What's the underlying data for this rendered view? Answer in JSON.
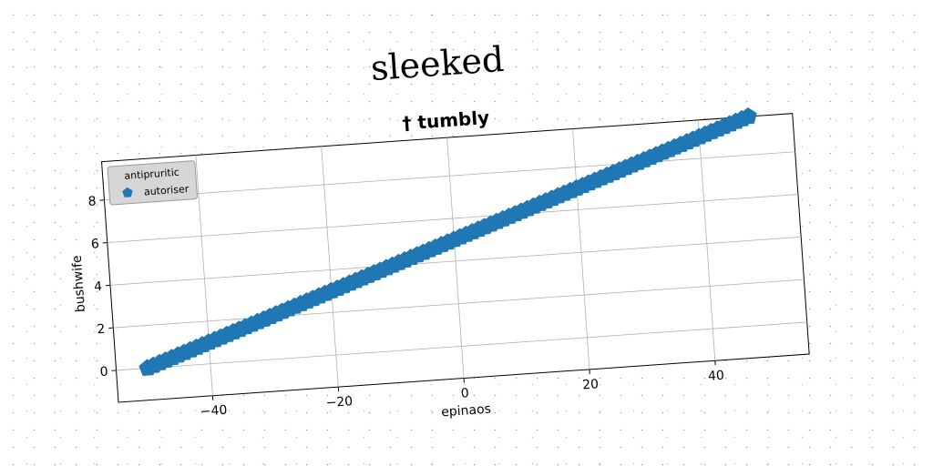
{
  "figure": {
    "suptitle": "sleeked"
  },
  "chart_data": {
    "type": "scatter",
    "title": "† tumbly",
    "xlabel": "epinaos",
    "ylabel": "bushwife",
    "xlim": [
      -55,
      55
    ],
    "ylim": [
      -1.5,
      9.8
    ],
    "xticks": [
      -40,
      -20,
      0,
      20,
      40
    ],
    "xtick_labels": [
      "−40",
      "−20",
      "0",
      "20",
      "40"
    ],
    "yticks": [
      0,
      2,
      4,
      6,
      8
    ],
    "ytick_labels": [
      "0",
      "2",
      "4",
      "6",
      "8"
    ],
    "grid": true,
    "legend": {
      "title": "antipruritic",
      "placement": "top-left"
    },
    "series": [
      {
        "name": "autoriser",
        "marker": "pentagon",
        "color": "#1f77b4",
        "x_start": -50,
        "x_end": 48,
        "x_step": 1,
        "slope": 0.1,
        "intercept": 5.0
      }
    ]
  }
}
